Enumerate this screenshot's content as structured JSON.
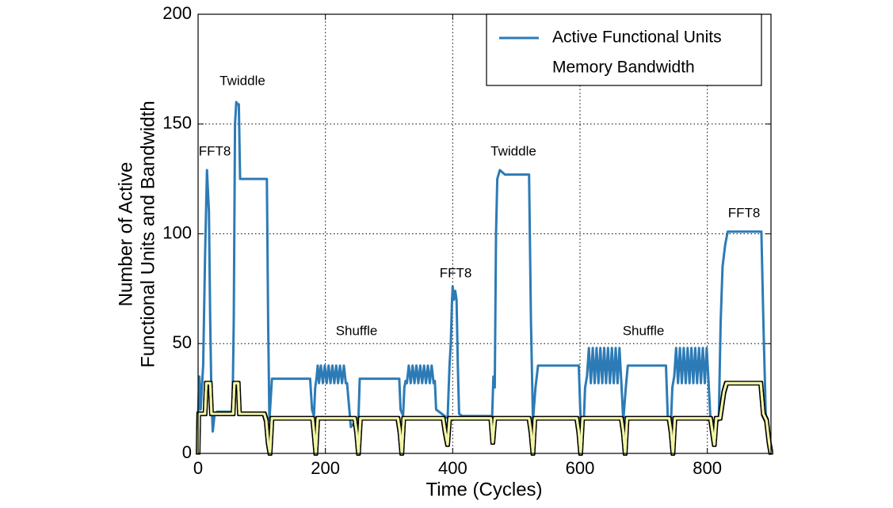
{
  "chart_data": {
    "type": "line",
    "xlabel": "Time (Cycles)",
    "ylabel": [
      "Number of Active",
      "Functional Units and Bandwidth"
    ],
    "xlim": [
      0,
      900
    ],
    "xticks": [
      0,
      200,
      400,
      600,
      800
    ],
    "ylim": [
      0,
      200
    ],
    "yticks": [
      0,
      50,
      100,
      150,
      200
    ],
    "grid": true,
    "legend": "upper right",
    "annotations": [
      "FFT8",
      "Twiddle",
      "Shuffle",
      "FFT8",
      "Twiddle",
      "Shuffle",
      "FFT8"
    ],
    "series": [
      {
        "name": "Active Functional Units",
        "color": "#2c7bb6",
        "x": [
          0,
          2,
          4,
          8,
          11,
          14,
          17,
          19,
          21,
          23,
          26,
          30,
          54,
          56,
          58,
          60,
          62,
          64,
          66,
          108,
          110,
          112,
          116,
          176,
          179,
          182,
          184,
          186,
          188,
          190,
          193,
          196,
          199,
          202,
          205,
          208,
          211,
          214,
          217,
          220,
          223,
          226,
          229,
          232,
          234,
          240,
          252,
          254,
          316,
          318,
          322,
          324,
          326,
          328,
          331,
          334,
          337,
          340,
          343,
          346,
          349,
          352,
          355,
          358,
          361,
          364,
          367,
          370,
          372,
          374,
          392,
          395,
          397,
          399,
          400,
          402,
          404,
          406,
          408,
          410,
          415,
          462,
          464,
          466,
          468,
          470,
          474,
          482,
          520,
          523,
          526,
          530,
          534,
          598,
          601,
          606,
          608,
          611,
          614,
          617,
          620,
          623,
          626,
          629,
          632,
          635,
          638,
          641,
          644,
          647,
          650,
          653,
          656,
          659,
          662,
          665,
          668,
          672,
          675,
          735,
          738,
          743,
          745,
          748,
          751,
          754,
          757,
          760,
          763,
          766,
          769,
          772,
          775,
          778,
          781,
          784,
          787,
          790,
          793,
          796,
          799,
          802,
          805,
          818,
          821,
          824,
          828,
          832,
          885,
          888,
          892,
          897,
          900
        ],
        "values": [
          18,
          35,
          20,
          40,
          90,
          129,
          110,
          60,
          25,
          10,
          18,
          19,
          19,
          60,
          150,
          160,
          159,
          159,
          125,
          125,
          60,
          15,
          34,
          34,
          20,
          17,
          30,
          34,
          40,
          32,
          40,
          32,
          40,
          32,
          40,
          32,
          40,
          32,
          40,
          32,
          40,
          32,
          40,
          32,
          32,
          12,
          16,
          34,
          34,
          20,
          17,
          30,
          33,
          32,
          40,
          32,
          40,
          32,
          40,
          32,
          40,
          32,
          40,
          32,
          40,
          32,
          40,
          32,
          33,
          20,
          16,
          40,
          50,
          70,
          76,
          70,
          74,
          70,
          40,
          18,
          17,
          17,
          35,
          30,
          100,
          125,
          129,
          127,
          127,
          60,
          15,
          30,
          40,
          40,
          15,
          15,
          30,
          35,
          48,
          32,
          48,
          32,
          48,
          32,
          48,
          32,
          48,
          32,
          48,
          32,
          48,
          32,
          48,
          32,
          48,
          32,
          15,
          30,
          40,
          40,
          15,
          15,
          30,
          35,
          48,
          32,
          48,
          32,
          48,
          32,
          48,
          32,
          48,
          32,
          48,
          32,
          48,
          32,
          48,
          32,
          48,
          32,
          15,
          15,
          60,
          85,
          95,
          101,
          101,
          60,
          15,
          8,
          2
        ]
      },
      {
        "name": "Memory Bandwidth",
        "color": "#f2f5a6",
        "x": [
          0,
          1,
          11,
          13,
          19,
          21,
          55,
          57,
          63,
          65,
          104,
          107,
          110,
          113,
          116,
          180,
          182,
          185,
          188,
          246,
          249,
          252,
          255,
          314,
          317,
          320,
          323,
          385,
          388,
          392,
          395,
          460,
          463,
          466,
          520,
          523,
          526,
          529,
          595,
          598,
          601,
          604,
          665,
          668,
          671,
          674,
          740,
          743,
          746,
          749,
          805,
          808,
          811,
          814,
          820,
          826,
          830,
          884,
          888,
          893,
          897,
          900
        ],
        "values": [
          0,
          18,
          18,
          32,
          32,
          18,
          18,
          32,
          32,
          18,
          18,
          15,
          5,
          0,
          16,
          16,
          10,
          0,
          16,
          16,
          10,
          0,
          16,
          16,
          10,
          0,
          16,
          16,
          10,
          4,
          16,
          16,
          5,
          16,
          16,
          10,
          0,
          16,
          16,
          10,
          0,
          16,
          16,
          10,
          0,
          16,
          16,
          10,
          0,
          16,
          16,
          10,
          4,
          16,
          16,
          28,
          32,
          32,
          18,
          15,
          5,
          0
        ]
      }
    ]
  }
}
